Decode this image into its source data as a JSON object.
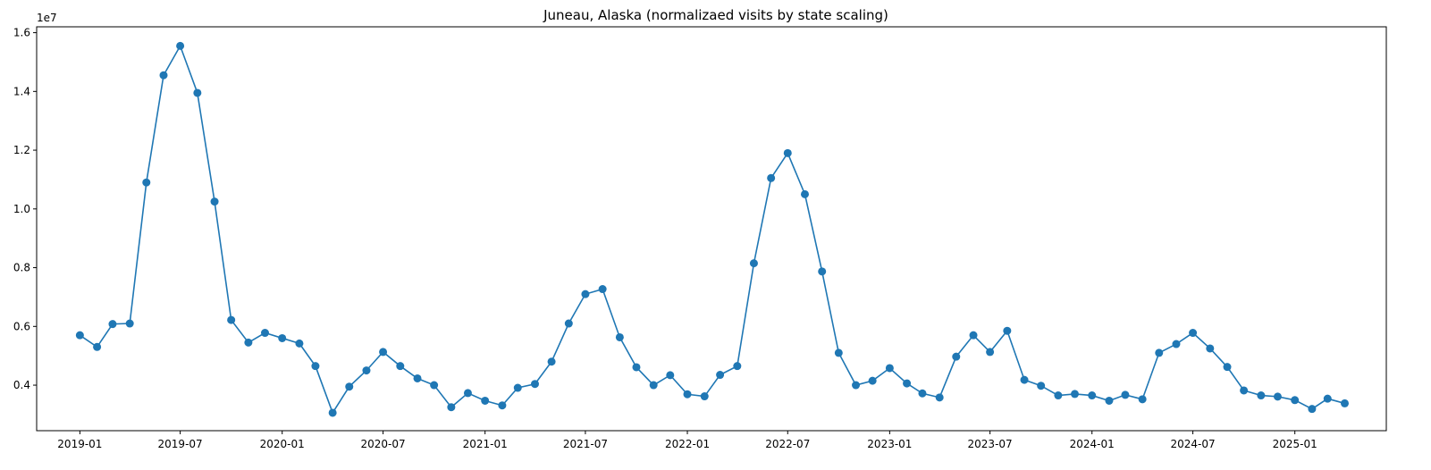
{
  "chart_data": {
    "type": "line",
    "title": "Juneau, Alaska (normalizaed visits by state scaling)",
    "xlabel": "",
    "ylabel": "",
    "y_offset_label": "1e7",
    "y_scale": 10000000,
    "ylim": [
      2.45,
      16.2
    ],
    "xlim": [
      "2018-10-15",
      "2025-06-15"
    ],
    "grid": false,
    "legend": "none",
    "marker": "circle",
    "x_ticks": [
      "2019-01",
      "2019-07",
      "2020-01",
      "2020-07",
      "2021-01",
      "2021-07",
      "2022-01",
      "2022-07",
      "2023-01",
      "2023-07",
      "2024-01",
      "2024-07",
      "2025-01"
    ],
    "y_ticks": [
      "0.4",
      "0.6",
      "0.8",
      "1.0",
      "1.2",
      "1.4",
      "1.6"
    ],
    "series": [
      {
        "color": "#1f77b4",
        "x": [
          "2019-01",
          "2019-02",
          "2019-03",
          "2019-04",
          "2019-05",
          "2019-06",
          "2019-07",
          "2019-08",
          "2019-09",
          "2019-10",
          "2019-11",
          "2019-12",
          "2020-01",
          "2020-02",
          "2020-03",
          "2020-04",
          "2020-05",
          "2020-06",
          "2020-07",
          "2020-08",
          "2020-09",
          "2020-10",
          "2020-11",
          "2020-12",
          "2021-01",
          "2021-02",
          "2021-03",
          "2021-04",
          "2021-05",
          "2021-06",
          "2021-07",
          "2021-08",
          "2021-09",
          "2021-10",
          "2021-11",
          "2021-12",
          "2022-01",
          "2022-02",
          "2022-03",
          "2022-04",
          "2022-05",
          "2022-06",
          "2022-07",
          "2022-08",
          "2022-09",
          "2022-10",
          "2022-11",
          "2022-12",
          "2023-01",
          "2023-02",
          "2023-03",
          "2023-04",
          "2023-05",
          "2023-06",
          "2023-07",
          "2023-08",
          "2023-09",
          "2023-10",
          "2023-11",
          "2023-12",
          "2024-01",
          "2024-02",
          "2024-03",
          "2024-04",
          "2024-05",
          "2024-06",
          "2024-07",
          "2024-08",
          "2024-09",
          "2024-10",
          "2024-11",
          "2024-12",
          "2025-01",
          "2025-02",
          "2025-03",
          "2025-04"
        ],
        "values": [
          5.7,
          5.3,
          6.08,
          6.1,
          10.9,
          14.55,
          15.55,
          13.95,
          10.25,
          6.22,
          5.45,
          5.78,
          5.6,
          5.42,
          4.65,
          3.06,
          3.95,
          4.5,
          5.13,
          4.65,
          4.23,
          4.0,
          3.25,
          3.73,
          3.47,
          3.31,
          3.91,
          4.04,
          4.8,
          6.1,
          7.1,
          7.27,
          5.63,
          4.61,
          4.0,
          4.34,
          3.69,
          3.62,
          4.35,
          4.65,
          8.15,
          11.05,
          11.9,
          10.5,
          7.87,
          5.1,
          4.0,
          4.15,
          4.58,
          4.06,
          3.72,
          3.58,
          4.97,
          5.7,
          5.13,
          5.85,
          4.18,
          3.98,
          3.65,
          3.7,
          3.65,
          3.47,
          3.67,
          3.52,
          5.1,
          5.4,
          5.78,
          5.25,
          4.62,
          3.82,
          3.65,
          3.61,
          3.49,
          3.19,
          3.54,
          3.38
        ]
      }
    ]
  }
}
